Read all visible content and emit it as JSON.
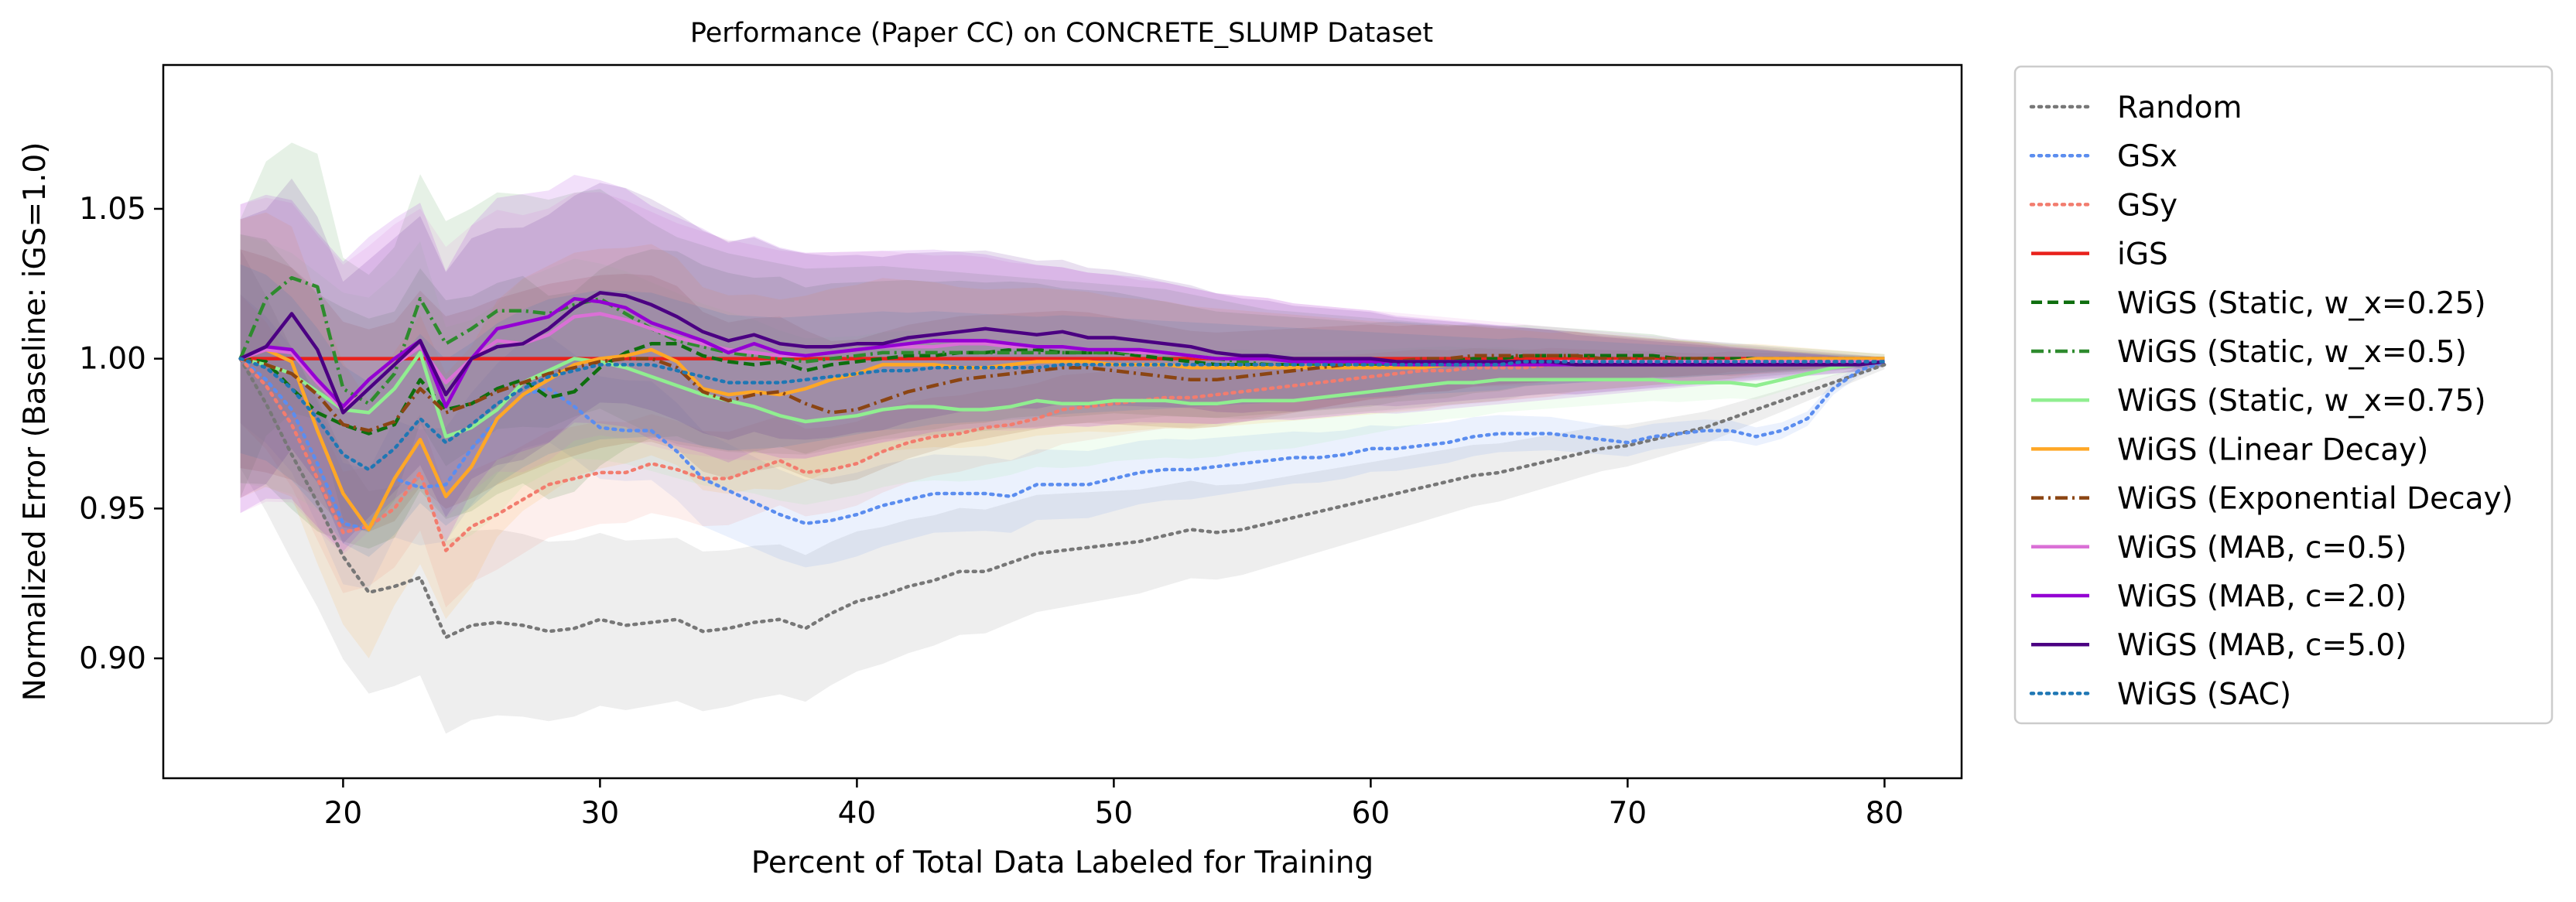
{
  "chart_data": {
    "type": "line",
    "title": "Performance (Paper CC) on CONCRETE_SLUMP Dataset",
    "xlabel": "Percent of Total Data Labeled for Training",
    "ylabel": "Normalized Error (Baseline: iGS=1.0)",
    "xlim": [
      13,
      83
    ],
    "ylim": [
      0.86,
      1.098
    ],
    "xticks": [
      20,
      30,
      40,
      50,
      60,
      70,
      80
    ],
    "yticks": [
      0.9,
      0.95,
      1.0,
      1.05
    ],
    "ytick_labels": [
      "0.90",
      "0.95",
      "1.00",
      "1.05"
    ],
    "grid": false,
    "legend_position": "outside-right",
    "x": [
      16,
      17,
      18,
      19,
      20,
      21,
      22,
      23,
      24,
      25,
      26,
      27,
      28,
      29,
      30,
      31,
      32,
      33,
      34,
      35,
      36,
      37,
      38,
      39,
      40,
      41,
      42,
      43,
      44,
      45,
      46,
      47,
      48,
      49,
      50,
      51,
      52,
      53,
      54,
      55,
      56,
      57,
      58,
      59,
      60,
      61,
      62,
      63,
      64,
      65,
      66,
      67,
      68,
      69,
      70,
      71,
      72,
      73,
      74,
      75,
      76,
      77,
      78,
      79,
      80
    ],
    "series": [
      {
        "name": "Random",
        "color": "#777777",
        "dash": "dotted",
        "band": 0.035,
        "values": [
          1.0,
          0.985,
          0.968,
          0.952,
          0.934,
          0.922,
          0.924,
          0.927,
          0.907,
          0.911,
          0.912,
          0.911,
          0.909,
          0.91,
          0.913,
          0.911,
          0.912,
          0.913,
          0.909,
          0.91,
          0.912,
          0.913,
          0.91,
          0.915,
          0.919,
          0.921,
          0.924,
          0.926,
          0.929,
          0.929,
          0.932,
          0.935,
          0.936,
          0.937,
          0.938,
          0.939,
          0.941,
          0.943,
          0.942,
          0.943,
          0.945,
          0.947,
          0.949,
          0.951,
          0.953,
          0.955,
          0.957,
          0.959,
          0.961,
          0.962,
          0.964,
          0.966,
          0.968,
          0.97,
          0.971,
          0.973,
          0.975,
          0.977,
          0.98,
          0.983,
          0.986,
          0.989,
          0.992,
          0.995,
          0.998
        ]
      },
      {
        "name": "GSx",
        "color": "#5b8def",
        "dash": "dotted",
        "band": 0.02,
        "values": [
          1.0,
          0.993,
          0.983,
          0.965,
          0.945,
          0.943,
          0.96,
          0.957,
          0.958,
          0.97,
          0.98,
          0.988,
          0.99,
          0.984,
          0.977,
          0.976,
          0.976,
          0.969,
          0.96,
          0.956,
          0.952,
          0.948,
          0.945,
          0.946,
          0.948,
          0.951,
          0.953,
          0.955,
          0.955,
          0.955,
          0.954,
          0.958,
          0.958,
          0.958,
          0.96,
          0.962,
          0.963,
          0.963,
          0.964,
          0.965,
          0.966,
          0.967,
          0.967,
          0.968,
          0.97,
          0.97,
          0.971,
          0.972,
          0.974,
          0.975,
          0.975,
          0.975,
          0.974,
          0.973,
          0.972,
          0.974,
          0.975,
          0.976,
          0.976,
          0.974,
          0.976,
          0.98,
          0.99,
          0.996,
          0.999
        ]
      },
      {
        "name": "GSy",
        "color": "#f27c6e",
        "dash": "dotted",
        "band": 0.02,
        "values": [
          1.0,
          0.991,
          0.978,
          0.96,
          0.942,
          0.944,
          0.95,
          0.962,
          0.936,
          0.944,
          0.948,
          0.953,
          0.958,
          0.96,
          0.962,
          0.962,
          0.965,
          0.963,
          0.96,
          0.96,
          0.963,
          0.966,
          0.962,
          0.963,
          0.965,
          0.969,
          0.972,
          0.974,
          0.975,
          0.977,
          0.978,
          0.98,
          0.983,
          0.984,
          0.985,
          0.986,
          0.987,
          0.987,
          0.988,
          0.989,
          0.99,
          0.991,
          0.992,
          0.993,
          0.994,
          0.995,
          0.996,
          0.996,
          0.997,
          0.997,
          0.997,
          0.998,
          0.998,
          0.998,
          0.998,
          0.998,
          0.998,
          0.998,
          0.999,
          0.999,
          0.999,
          0.999,
          0.999,
          0.999,
          0.999
        ]
      },
      {
        "name": "iGS",
        "color": "#e8221c",
        "dash": "solid",
        "band": 0,
        "values": [
          1.0,
          1.0,
          1.0,
          1.0,
          1.0,
          1.0,
          1.0,
          1.0,
          1.0,
          1.0,
          1.0,
          1.0,
          1.0,
          1.0,
          1.0,
          1.0,
          1.0,
          1.0,
          1.0,
          1.0,
          1.0,
          1.0,
          1.0,
          1.0,
          1.0,
          1.0,
          1.0,
          1.0,
          1.0,
          1.0,
          1.0,
          1.0,
          1.0,
          1.0,
          1.0,
          1.0,
          1.0,
          1.0,
          1.0,
          1.0,
          1.0,
          1.0,
          1.0,
          1.0,
          1.0,
          1.0,
          1.0,
          1.0,
          1.0,
          1.0,
          1.0,
          1.0,
          1.0,
          1.0,
          1.0,
          1.0,
          1.0,
          1.0,
          1.0,
          1.0,
          1.0,
          1.0,
          1.0,
          1.0,
          1.0
        ]
      },
      {
        "name": "WiGS (Static, w_x=0.25)",
        "color": "#0e6e0e",
        "dash": "dashed",
        "band": 0.04,
        "values": [
          1.0,
          0.999,
          0.99,
          0.982,
          0.978,
          0.975,
          0.978,
          0.993,
          0.983,
          0.985,
          0.99,
          0.993,
          0.987,
          0.989,
          0.997,
          1.002,
          1.005,
          1.005,
          1.001,
          0.999,
          0.998,
          0.999,
          0.996,
          0.998,
          0.999,
          1.0,
          1.001,
          1.001,
          1.002,
          1.002,
          1.003,
          1.003,
          1.002,
          1.002,
          1.002,
          1.001,
          1.0,
          0.999,
          0.998,
          0.998,
          0.998,
          0.998,
          0.998,
          0.998,
          0.998,
          0.999,
          0.999,
          0.999,
          1.0,
          1.0,
          1.001,
          1.001,
          1.001,
          1.001,
          1.001,
          1.001,
          1.0,
          1.0,
          1.0,
          1.0,
          1.0,
          1.0,
          1.0,
          1.0,
          1.0
        ]
      },
      {
        "name": "WiGS (Static, w_x=0.5)",
        "color": "#2e8b2e",
        "dash": "dashdot",
        "band": 0.045,
        "values": [
          1.0,
          1.02,
          1.027,
          1.024,
          0.99,
          0.985,
          0.995,
          1.02,
          1.005,
          1.01,
          1.016,
          1.016,
          1.015,
          1.018,
          1.02,
          1.015,
          1.01,
          1.006,
          1.004,
          1.002,
          1.001,
          1.0,
          0.999,
          1.0,
          1.001,
          1.002,
          1.002,
          1.002,
          1.002,
          1.002,
          1.002,
          1.002,
          1.002,
          1.002,
          1.002,
          1.002,
          1.002,
          1.001,
          1.0,
          0.999,
          0.998,
          0.998,
          0.998,
          0.998,
          0.998,
          0.998,
          0.998,
          0.998,
          0.998,
          0.998,
          0.999,
          0.999,
          0.999,
          0.999,
          0.999,
          0.999,
          0.999,
          0.999,
          0.999,
          0.999,
          0.999,
          0.999,
          0.999,
          0.999,
          0.999
        ]
      },
      {
        "name": "WiGS (Static, w_x=0.75)",
        "color": "#90ee90",
        "dash": "solid",
        "band": 0.04,
        "values": [
          1.0,
          0.998,
          0.995,
          0.989,
          0.983,
          0.982,
          0.99,
          1.002,
          0.974,
          0.977,
          0.983,
          0.992,
          0.996,
          1.0,
          0.999,
          0.997,
          0.994,
          0.991,
          0.988,
          0.986,
          0.984,
          0.981,
          0.979,
          0.98,
          0.981,
          0.983,
          0.984,
          0.984,
          0.983,
          0.983,
          0.984,
          0.986,
          0.985,
          0.985,
          0.986,
          0.986,
          0.986,
          0.985,
          0.985,
          0.986,
          0.986,
          0.986,
          0.987,
          0.988,
          0.989,
          0.99,
          0.991,
          0.992,
          0.992,
          0.993,
          0.993,
          0.993,
          0.993,
          0.993,
          0.993,
          0.993,
          0.992,
          0.992,
          0.992,
          0.991,
          0.993,
          0.995,
          0.997,
          0.998,
          0.999
        ]
      },
      {
        "name": "WiGS (Linear Decay)",
        "color": "#ffa726",
        "dash": "solid",
        "band": 0.045,
        "values": [
          1.0,
          1.003,
          0.999,
          0.976,
          0.955,
          0.943,
          0.96,
          0.973,
          0.954,
          0.964,
          0.98,
          0.988,
          0.993,
          0.998,
          1.0,
          1.001,
          1.003,
          0.999,
          0.99,
          0.988,
          0.989,
          0.988,
          0.99,
          0.993,
          0.995,
          0.998,
          0.998,
          0.998,
          0.997,
          0.997,
          0.998,
          0.999,
          0.999,
          0.999,
          0.998,
          0.998,
          0.998,
          0.997,
          0.997,
          0.997,
          0.997,
          0.997,
          0.997,
          0.997,
          0.997,
          0.997,
          0.997,
          0.998,
          0.998,
          0.998,
          0.998,
          0.998,
          0.999,
          0.999,
          0.999,
          0.999,
          0.999,
          0.999,
          0.999,
          1.0,
          1.0,
          1.0,
          1.0,
          1.0,
          1.0
        ]
      },
      {
        "name": "WiGS (Exponential Decay)",
        "color": "#8b4513",
        "dash": "dashdot",
        "band": 0.035,
        "values": [
          1.0,
          0.998,
          0.995,
          0.988,
          0.978,
          0.976,
          0.979,
          0.99,
          0.982,
          0.985,
          0.989,
          0.992,
          0.995,
          0.997,
          0.999,
          1.0,
          1.0,
          0.997,
          0.989,
          0.986,
          0.988,
          0.989,
          0.985,
          0.982,
          0.983,
          0.986,
          0.989,
          0.991,
          0.993,
          0.994,
          0.995,
          0.996,
          0.997,
          0.997,
          0.996,
          0.995,
          0.994,
          0.993,
          0.993,
          0.994,
          0.995,
          0.996,
          0.997,
          0.998,
          0.999,
          0.999,
          1.0,
          1.0,
          1.001,
          1.001,
          1.001,
          1.001,
          1.001,
          1.0,
          1.0,
          1.0,
          1.0,
          1.0,
          0.999,
          0.999,
          0.999,
          0.999,
          0.999,
          0.999,
          0.999
        ]
      },
      {
        "name": "WiGS (MAB, c=0.5)",
        "color": "#da70d6",
        "dash": "solid",
        "band": 0.05,
        "values": [
          1.0,
          1.003,
          1.002,
          0.992,
          0.983,
          0.99,
          0.998,
          1.004,
          0.992,
          1.0,
          1.006,
          1.005,
          1.008,
          1.014,
          1.015,
          1.013,
          1.01,
          1.007,
          1.005,
          1.003,
          1.002,
          1.001,
          1.001,
          1.002,
          1.003,
          1.004,
          1.004,
          1.004,
          1.005,
          1.005,
          1.004,
          1.004,
          1.004,
          1.003,
          1.003,
          1.002,
          1.002,
          1.001,
          1.0,
          1.0,
          1.0,
          0.999,
          0.999,
          0.999,
          0.999,
          0.999,
          0.999,
          0.999,
          0.999,
          0.999,
          0.999,
          0.999,
          0.999,
          0.999,
          0.999,
          0.999,
          0.999,
          0.999,
          0.999,
          0.999,
          0.999,
          0.999,
          0.999,
          0.999,
          0.999
        ]
      },
      {
        "name": "WiGS (MAB, c=2.0)",
        "color": "#9400d3",
        "dash": "solid",
        "band": 0.05,
        "values": [
          1.0,
          1.004,
          1.003,
          0.993,
          0.984,
          0.993,
          1.0,
          1.006,
          0.984,
          1.0,
          1.01,
          1.012,
          1.014,
          1.02,
          1.019,
          1.017,
          1.012,
          1.009,
          1.006,
          1.002,
          1.005,
          1.002,
          1.001,
          1.002,
          1.003,
          1.004,
          1.005,
          1.006,
          1.006,
          1.006,
          1.005,
          1.004,
          1.004,
          1.003,
          1.003,
          1.003,
          1.002,
          1.001,
          1.0,
          1.0,
          1.0,
          0.999,
          0.999,
          0.999,
          0.999,
          0.998,
          0.998,
          0.998,
          0.998,
          0.998,
          0.998,
          0.998,
          0.998,
          0.998,
          0.998,
          0.998,
          0.998,
          0.998,
          0.998,
          0.998,
          0.998,
          0.998,
          0.998,
          0.998,
          0.999
        ]
      },
      {
        "name": "WiGS (MAB, c=5.0)",
        "color": "#4b0082",
        "dash": "solid",
        "band": 0.045,
        "values": [
          1.0,
          1.004,
          1.015,
          1.003,
          0.982,
          0.99,
          0.998,
          1.006,
          0.988,
          1.0,
          1.004,
          1.005,
          1.01,
          1.017,
          1.022,
          1.021,
          1.018,
          1.014,
          1.009,
          1.006,
          1.008,
          1.005,
          1.004,
          1.004,
          1.005,
          1.005,
          1.007,
          1.008,
          1.009,
          1.01,
          1.009,
          1.008,
          1.009,
          1.007,
          1.007,
          1.006,
          1.005,
          1.004,
          1.002,
          1.001,
          1.001,
          1.0,
          1.0,
          1.0,
          1.0,
          0.999,
          0.999,
          0.999,
          0.999,
          0.999,
          0.999,
          0.999,
          0.998,
          0.998,
          0.998,
          0.998,
          0.998,
          0.998,
          0.998,
          0.998,
          0.998,
          0.998,
          0.998,
          0.998,
          0.999
        ]
      },
      {
        "name": "WiGS (SAC)",
        "color": "#1f77b4",
        "dash": "dotted",
        "band": 0.03,
        "values": [
          1.0,
          0.997,
          0.99,
          0.98,
          0.968,
          0.963,
          0.97,
          0.98,
          0.972,
          0.978,
          0.985,
          0.99,
          0.994,
          0.996,
          0.998,
          0.998,
          0.998,
          0.996,
          0.994,
          0.992,
          0.992,
          0.992,
          0.993,
          0.994,
          0.995,
          0.996,
          0.996,
          0.997,
          0.997,
          0.997,
          0.997,
          0.997,
          0.998,
          0.998,
          0.998,
          0.998,
          0.998,
          0.998,
          0.998,
          0.998,
          0.998,
          0.998,
          0.998,
          0.998,
          0.998,
          0.998,
          0.998,
          0.998,
          0.998,
          0.998,
          0.999,
          0.999,
          0.999,
          0.999,
          0.999,
          0.999,
          0.999,
          0.999,
          0.999,
          0.999,
          0.999,
          0.999,
          0.999,
          0.999,
          0.999
        ]
      }
    ]
  }
}
